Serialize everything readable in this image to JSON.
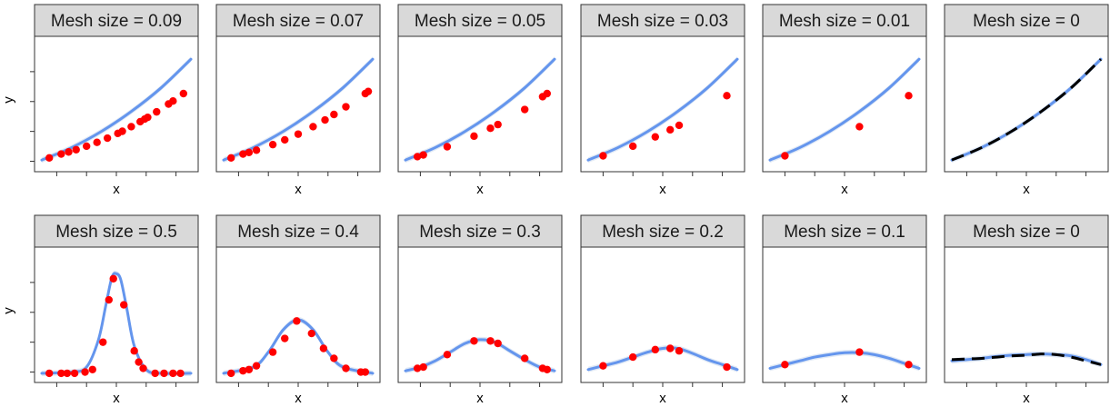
{
  "chart_data": {
    "type": "line",
    "layout": "faceted-grid",
    "rows": [
      {
        "ylabel": "y",
        "panels": [
          {
            "title": "Mesh size = 0.09",
            "xlabel": "x",
            "xlim": [
              0,
              1
            ],
            "ylim": [
              0,
              1
            ],
            "curve": {
              "x": [
                0,
                0.2,
                0.4,
                0.6,
                0.8,
                1.0
              ],
              "y": [
                0.05,
                0.15,
                0.28,
                0.44,
                0.63,
                0.86
              ],
              "color": "#6495ED",
              "style": "solid"
            },
            "points": {
              "x": [
                0.05,
                0.13,
                0.18,
                0.23,
                0.3,
                0.37,
                0.44,
                0.51,
                0.54,
                0.6,
                0.66,
                0.69,
                0.71,
                0.77,
                0.85,
                0.88,
                0.95
              ],
              "y": [
                0.067,
                0.098,
                0.115,
                0.133,
                0.161,
                0.192,
                0.226,
                0.264,
                0.281,
                0.318,
                0.358,
                0.379,
                0.393,
                0.437,
                0.5,
                0.524,
                0.584
              ],
              "color": "#FF0000"
            }
          },
          {
            "title": "Mesh size = 0.07",
            "xlabel": "x",
            "xlim": [
              0,
              1
            ],
            "ylim": [
              0,
              1
            ],
            "curve": {
              "x": [
                0,
                0.2,
                0.4,
                0.6,
                0.8,
                1.0
              ],
              "y": [
                0.05,
                0.15,
                0.28,
                0.44,
                0.63,
                0.86
              ],
              "color": "#6495ED",
              "style": "solid"
            },
            "points": {
              "x": [
                0.05,
                0.13,
                0.17,
                0.22,
                0.33,
                0.41,
                0.5,
                0.6,
                0.68,
                0.74,
                0.82,
                0.95,
                0.97
              ],
              "y": [
                0.067,
                0.098,
                0.111,
                0.129,
                0.174,
                0.212,
                0.258,
                0.318,
                0.372,
                0.416,
                0.478,
                0.584,
                0.601
              ],
              "color": "#FF0000"
            }
          },
          {
            "title": "Mesh size = 0.05",
            "xlabel": "x",
            "xlim": [
              0,
              1
            ],
            "ylim": [
              0,
              1
            ],
            "curve": {
              "x": [
                0,
                0.2,
                0.4,
                0.6,
                0.8,
                1.0
              ],
              "y": [
                0.05,
                0.15,
                0.28,
                0.44,
                0.63,
                0.86
              ],
              "color": "#6495ED",
              "style": "solid"
            },
            "points": {
              "x": [
                0.08,
                0.12,
                0.28,
                0.46,
                0.57,
                0.62,
                0.8,
                0.92,
                0.95
              ],
              "y": [
                0.077,
                0.091,
                0.157,
                0.242,
                0.305,
                0.335,
                0.456,
                0.559,
                0.584
              ],
              "color": "#FF0000"
            }
          },
          {
            "title": "Mesh size = 0.03",
            "xlabel": "x",
            "xlim": [
              0,
              1
            ],
            "ylim": [
              0,
              1
            ],
            "curve": {
              "x": [
                0,
                0.2,
                0.4,
                0.6,
                0.8,
                1.0
              ],
              "y": [
                0.05,
                0.15,
                0.28,
                0.44,
                0.63,
                0.86
              ],
              "color": "#6495ED",
              "style": "solid"
            },
            "points": {
              "x": [
                0.1,
                0.3,
                0.45,
                0.55,
                0.61,
                0.93
              ],
              "y": [
                0.084,
                0.161,
                0.236,
                0.293,
                0.329,
                0.567
              ],
              "color": "#FF0000"
            }
          },
          {
            "title": "Mesh size = 0.01",
            "xlabel": "x",
            "xlim": [
              0,
              1
            ],
            "ylim": [
              0,
              1
            ],
            "curve": {
              "x": [
                0,
                0.2,
                0.4,
                0.6,
                0.8,
                1.0
              ],
              "y": [
                0.05,
                0.15,
                0.28,
                0.44,
                0.63,
                0.86
              ],
              "color": "#6495ED",
              "style": "solid"
            },
            "points": {
              "x": [
                0.1,
                0.6,
                0.93
              ],
              "y": [
                0.084,
                0.318,
                0.567
              ],
              "color": "#FF0000"
            }
          },
          {
            "title": "Mesh size = 0",
            "xlabel": "x",
            "xlim": [
              0,
              1
            ],
            "ylim": [
              0,
              1
            ],
            "curve": {
              "x": [
                0,
                0.2,
                0.4,
                0.6,
                0.8,
                1.0
              ],
              "y": [
                0.05,
                0.15,
                0.28,
                0.44,
                0.63,
                0.86
              ],
              "color": "#6495ED",
              "style": "solid"
            },
            "overlay": {
              "x": [
                0,
                0.2,
                0.4,
                0.6,
                0.8,
                1.0
              ],
              "y": [
                0.05,
                0.15,
                0.28,
                0.44,
                0.63,
                0.86
              ],
              "color": "#000000",
              "style": "dashed"
            },
            "points": {
              "x": [],
              "y": [],
              "color": "#FF0000"
            }
          }
        ]
      },
      {
        "ylabel": "y",
        "panels": [
          {
            "title": "Mesh size = 0.5",
            "xlabel": "x",
            "xlim": [
              0,
              1
            ],
            "ylim": [
              0,
              1
            ],
            "curve": {
              "x": [
                0,
                0.2,
                0.3,
                0.38,
                0.43,
                0.47,
                0.5,
                0.53,
                0.57,
                0.62,
                0.7,
                0.8,
                1.0
              ],
              "y": [
                0.03,
                0.04,
                0.08,
                0.3,
                0.58,
                0.8,
                0.83,
                0.78,
                0.55,
                0.25,
                0.06,
                0.03,
                0.03
              ],
              "color": "#6495ED",
              "style": "solid"
            },
            "points": {
              "x": [
                0.05,
                0.13,
                0.17,
                0.22,
                0.29,
                0.34,
                0.41,
                0.45,
                0.48,
                0.55,
                0.62,
                0.65,
                0.68,
                0.76,
                0.82,
                0.88,
                0.93
              ],
              "y": [
                0.03,
                0.03,
                0.03,
                0.03,
                0.04,
                0.06,
                0.28,
                0.62,
                0.79,
                0.58,
                0.21,
                0.12,
                0.07,
                0.03,
                0.03,
                0.03,
                0.03
              ],
              "color": "#FF0000"
            }
          },
          {
            "title": "Mesh size = 0.4",
            "xlabel": "x",
            "xlim": [
              0,
              1
            ],
            "ylim": [
              0,
              1
            ],
            "curve": {
              "x": [
                0,
                0.2,
                0.3,
                0.4,
                0.5,
                0.6,
                0.7,
                0.8,
                1.0
              ],
              "y": [
                0.03,
                0.08,
                0.2,
                0.38,
                0.46,
                0.38,
                0.2,
                0.08,
                0.03
              ],
              "color": "#6495ED",
              "style": "solid"
            },
            "points": {
              "x": [
                0.05,
                0.13,
                0.17,
                0.22,
                0.33,
                0.41,
                0.49,
                0.59,
                0.67,
                0.74,
                0.82,
                0.92,
                0.95
              ],
              "y": [
                0.03,
                0.05,
                0.06,
                0.09,
                0.2,
                0.31,
                0.45,
                0.35,
                0.23,
                0.15,
                0.07,
                0.04,
                0.04
              ],
              "color": "#FF0000"
            }
          },
          {
            "title": "Mesh size = 0.3",
            "xlabel": "x",
            "xlim": [
              0,
              1
            ],
            "ylim": [
              0,
              1
            ],
            "curve": {
              "x": [
                0,
                0.1,
                0.2,
                0.3,
                0.4,
                0.5,
                0.6,
                0.7,
                0.8,
                0.9,
                1.0
              ],
              "y": [
                0.05,
                0.08,
                0.13,
                0.2,
                0.27,
                0.3,
                0.28,
                0.21,
                0.14,
                0.08,
                0.05
              ],
              "color": "#6495ED",
              "style": "solid"
            },
            "points": {
              "x": [
                0.08,
                0.12,
                0.28,
                0.46,
                0.57,
                0.62,
                0.8,
                0.92,
                0.95
              ],
              "y": [
                0.07,
                0.08,
                0.18,
                0.29,
                0.29,
                0.27,
                0.15,
                0.07,
                0.06
              ],
              "color": "#FF0000"
            }
          },
          {
            "title": "Mesh size = 0.2",
            "xlabel": "x",
            "xlim": [
              0,
              1
            ],
            "ylim": [
              0,
              1
            ],
            "curve": {
              "x": [
                0,
                0.1,
                0.2,
                0.3,
                0.4,
                0.5,
                0.6,
                0.7,
                0.8,
                0.9,
                1.0
              ],
              "y": [
                0.06,
                0.09,
                0.12,
                0.16,
                0.2,
                0.23,
                0.23,
                0.19,
                0.14,
                0.1,
                0.06
              ],
              "color": "#6495ED",
              "style": "solid"
            },
            "points": {
              "x": [
                0.1,
                0.3,
                0.45,
                0.55,
                0.61,
                0.93
              ],
              "y": [
                0.09,
                0.16,
                0.22,
                0.23,
                0.21,
                0.08
              ],
              "color": "#FF0000"
            }
          },
          {
            "title": "Mesh size = 0.1",
            "xlabel": "x",
            "xlim": [
              0,
              1
            ],
            "ylim": [
              0,
              1
            ],
            "curve": {
              "x": [
                0,
                0.1,
                0.2,
                0.3,
                0.4,
                0.5,
                0.6,
                0.7,
                0.8,
                0.9,
                1.0
              ],
              "y": [
                0.07,
                0.1,
                0.13,
                0.16,
                0.18,
                0.195,
                0.195,
                0.18,
                0.15,
                0.11,
                0.07
              ],
              "color": "#6495ED",
              "style": "solid"
            },
            "points": {
              "x": [
                0.1,
                0.6,
                0.93
              ],
              "y": [
                0.1,
                0.2,
                0.1
              ],
              "color": "#FF0000"
            }
          },
          {
            "title": "Mesh size = 0",
            "xlabel": "x",
            "xlim": [
              0,
              1
            ],
            "ylim": [
              0,
              1
            ],
            "curve": {
              "x": [
                0,
                0.1,
                0.2,
                0.3,
                0.4,
                0.5,
                0.6,
                0.7,
                0.8,
                0.9,
                1.0
              ],
              "y": [
                0.13,
                0.14,
                0.15,
                0.165,
                0.175,
                0.18,
                0.185,
                0.18,
                0.17,
                0.14,
                0.1
              ],
              "color": "#6495ED",
              "style": "solid"
            },
            "overlay": {
              "x": [
                0,
                0.1,
                0.2,
                0.3,
                0.4,
                0.5,
                0.6,
                0.7,
                0.8,
                0.9,
                1.0
              ],
              "y": [
                0.14,
                0.145,
                0.15,
                0.16,
                0.17,
                0.175,
                0.185,
                0.18,
                0.16,
                0.13,
                0.1
              ],
              "color": "#000000",
              "style": "dashed"
            },
            "points": {
              "x": [],
              "y": [],
              "color": "#FF0000"
            }
          }
        ]
      }
    ],
    "strip_fill": "#D9D9D9",
    "ribbon_fill": "#D8E3F3",
    "grid": false
  }
}
